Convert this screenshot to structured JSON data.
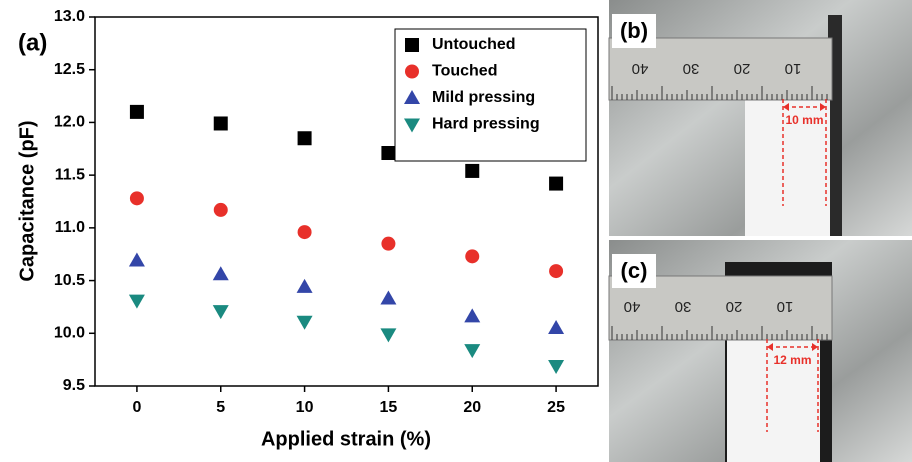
{
  "chart_data": {
    "type": "scatter",
    "panel_label": "(a)",
    "x_label": "Applied strain (%)",
    "y_label": "Capacitance (pF)",
    "x": [
      0,
      5,
      10,
      15,
      20,
      25
    ],
    "series": [
      {
        "name": "Untouched",
        "color": "#000000",
        "marker": "square",
        "values": [
          12.1,
          11.99,
          11.85,
          11.71,
          11.54,
          11.42
        ]
      },
      {
        "name": "Touched",
        "color": "#e8302a",
        "marker": "circle",
        "values": [
          11.28,
          11.17,
          10.96,
          10.85,
          10.73,
          10.59
        ]
      },
      {
        "name": "Mild pressing",
        "color": "#3346a8",
        "marker": "triangle-up",
        "values": [
          10.69,
          10.56,
          10.44,
          10.33,
          10.16,
          10.05
        ]
      },
      {
        "name": "Hard pressing",
        "color": "#1a8a80",
        "marker": "triangle-down",
        "values": [
          10.31,
          10.21,
          10.11,
          9.99,
          9.84,
          9.69
        ]
      }
    ],
    "xlim": [
      -2.5,
      27.5
    ],
    "ylim": [
      9.5,
      13.0
    ],
    "xticks": [
      0,
      5,
      10,
      15,
      20,
      25
    ],
    "yticks": [
      9.5,
      {
        "value": 10.0,
        "label": "10.0"
      },
      10.5,
      {
        "value": 11.0,
        "label": "11.0"
      },
      11.5,
      {
        "value": 12.0,
        "label": "12.0"
      },
      12.5,
      {
        "value": 13.0,
        "label": "13.0"
      }
    ],
    "legend": "upper right",
    "grid": false
  },
  "photos": [
    {
      "label": "(b)",
      "measure": "10 mm",
      "ruler": [
        "40",
        "30",
        "20",
        "10"
      ]
    },
    {
      "label": "(c)",
      "measure": "12 mm",
      "ruler": [
        "40",
        "30",
        "20",
        "10"
      ]
    }
  ]
}
